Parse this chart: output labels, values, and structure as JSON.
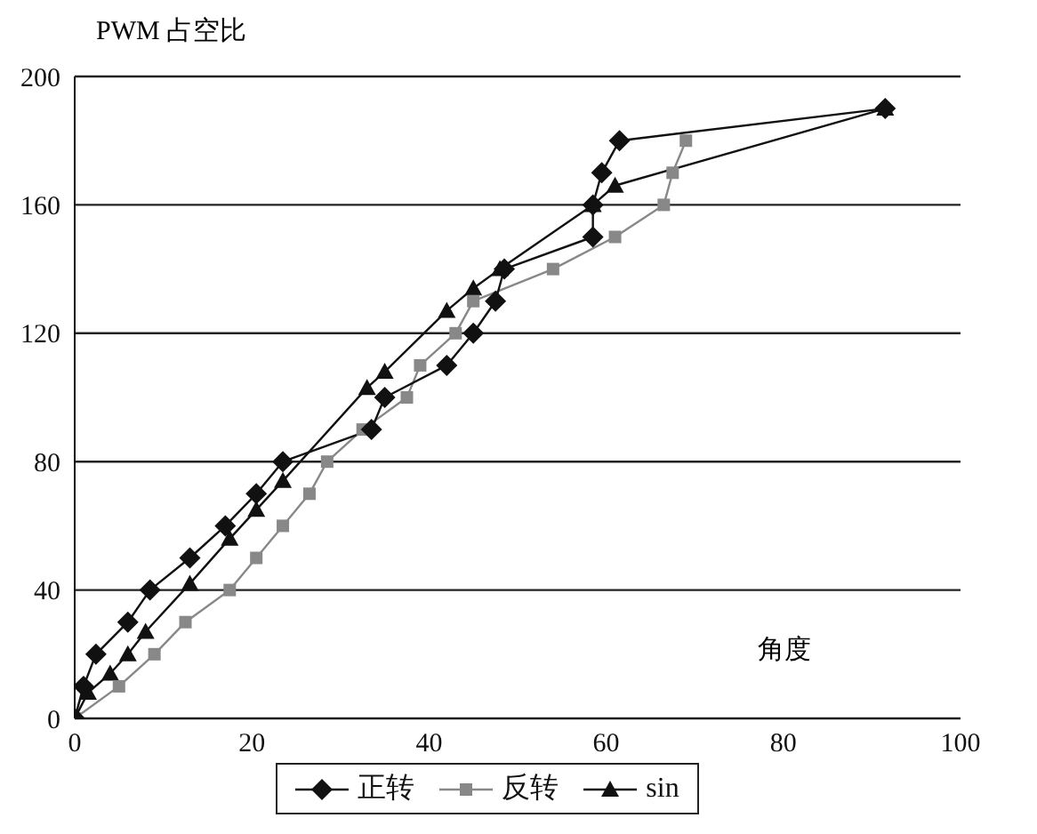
{
  "chart_data": {
    "type": "line",
    "ylabel": "PWM 占空比",
    "xlabel": "角度",
    "xlim": [
      0,
      100
    ],
    "xticks": [
      0,
      20,
      40,
      60,
      80,
      100
    ],
    "ylim": [
      0,
      200
    ],
    "yticks": [
      0,
      40,
      80,
      120,
      160,
      200
    ],
    "grid": "y",
    "legend": "bottom",
    "line_style": "solid",
    "series": [
      {
        "name": "正转",
        "color": "#111111",
        "marker": "diamond",
        "x": [
          0,
          1,
          2.4,
          6,
          8.5,
          13,
          17,
          20.5,
          23.5,
          33.5,
          35,
          42,
          45,
          47.5,
          48.5,
          58.5,
          58.5,
          59.5,
          61.5,
          91.5
        ],
        "values": [
          0,
          10,
          20,
          30,
          40,
          50,
          60,
          70,
          80,
          90,
          100,
          110,
          120,
          130,
          140,
          150,
          160,
          170,
          180,
          190
        ]
      },
      {
        "name": "反转",
        "color": "#888888",
        "marker": "square",
        "x": [
          0,
          5,
          9,
          12.5,
          17.5,
          20.5,
          23.5,
          26.5,
          28.5,
          32.5,
          37.5,
          39,
          43,
          45,
          54,
          61,
          66.5,
          67.5,
          69
        ],
        "values": [
          0,
          10,
          20,
          30,
          40,
          50,
          60,
          70,
          80,
          90,
          100,
          110,
          120,
          130,
          140,
          150,
          160,
          170,
          180
        ]
      },
      {
        "name": "sin",
        "color": "#111111",
        "marker": "triangle",
        "x": [
          0,
          1.5,
          4,
          6,
          8,
          13,
          17.5,
          20.5,
          23.5,
          33,
          35,
          42,
          45,
          48,
          58.5,
          61,
          91.5
        ],
        "values": [
          0,
          8,
          14,
          20,
          27,
          42,
          56,
          65,
          74,
          103,
          108,
          127,
          134,
          140,
          160,
          166,
          190
        ]
      }
    ]
  }
}
